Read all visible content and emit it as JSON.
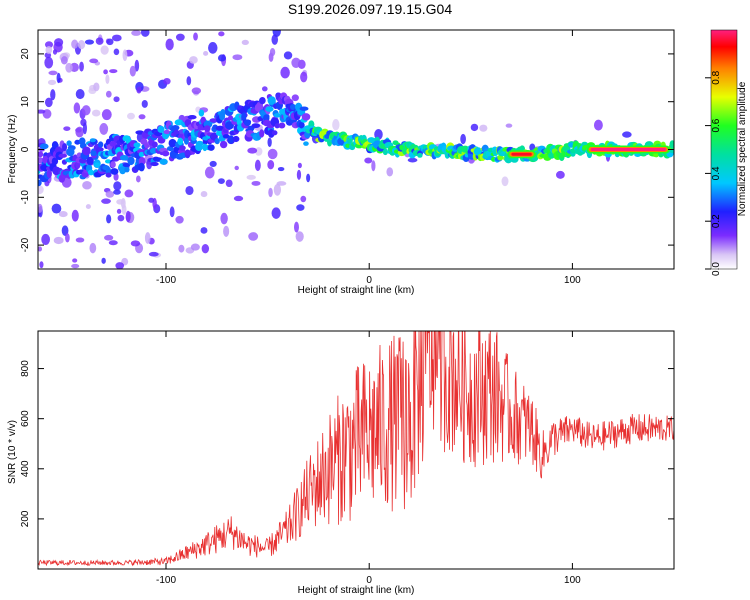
{
  "title": "S199.2026.097.19.15.G04",
  "colors": {
    "snr_line": "#e83030",
    "speckle": "#a070e0",
    "frame": "#000000"
  },
  "chart_data": [
    {
      "type": "heatmap",
      "xlabel": "Height of straight line (km)",
      "ylabel": "Frequency (Hz)",
      "xlim": [
        -163,
        150
      ],
      "ylim": [
        -25,
        25
      ],
      "xticks": [
        -100,
        0,
        100
      ],
      "xtick_labels": [
        "-100",
        "0",
        "100"
      ],
      "yticks": [
        -20,
        -10,
        0,
        10,
        20
      ],
      "ytick_labels": [
        "-20",
        "-10",
        "0",
        "10",
        "20"
      ],
      "colorbar": {
        "label": "Normalized spectral amplitude",
        "range": [
          0,
          1
        ],
        "ticks": [
          0.0,
          0.2,
          0.4,
          0.6,
          0.8
        ],
        "tick_labels": [
          "0.0",
          "0.2",
          "0.4",
          "0.6",
          "0.8"
        ]
      },
      "ridge": {
        "description_points_x": [
          -163,
          -120,
          -80,
          -50,
          -38,
          -25,
          0,
          20,
          40,
          60,
          70,
          80,
          95,
          104,
          108,
          150
        ],
        "description_points_freq": [
          -3,
          -1,
          4,
          7,
          8,
          3,
          1,
          0,
          -0.5,
          -1,
          -1,
          -1,
          -0.5,
          0.5,
          0,
          0
        ],
        "peak_amplitude_segments": [
          {
            "x_start": 68,
            "x_end": 82,
            "freq": -1,
            "amp": 0.95
          },
          {
            "x_start": 107,
            "x_end": 148,
            "freq": 0,
            "amp": 1.0
          }
        ]
      }
    },
    {
      "type": "line",
      "xlabel": "Height of straight line (km)",
      "ylabel": "SNR (10 * v/v)",
      "xlim": [
        -163,
        150
      ],
      "ylim": [
        0,
        950
      ],
      "xticks": [
        -100,
        0,
        100
      ],
      "xtick_labels": [
        "-100",
        "0",
        "100"
      ],
      "yticks": [
        200,
        400,
        600,
        800
      ],
      "ytick_labels": [
        "200",
        "400",
        "600",
        "800"
      ],
      "envelope_x": [
        -163,
        -140,
        -120,
        -100,
        -85,
        -75,
        -68,
        -60,
        -50,
        -40,
        -30,
        -20,
        -10,
        0,
        10,
        20,
        30,
        40,
        50,
        60,
        70,
        80,
        85,
        90,
        100,
        110,
        120,
        130,
        140,
        150
      ],
      "envelope_y": [
        25,
        25,
        25,
        30,
        80,
        120,
        150,
        100,
        80,
        160,
        300,
        400,
        480,
        540,
        580,
        600,
        850,
        800,
        700,
        720,
        620,
        560,
        450,
        520,
        560,
        520,
        540,
        560,
        560,
        560
      ],
      "noise_amplitude": [
        10,
        10,
        10,
        15,
        40,
        60,
        70,
        50,
        40,
        80,
        150,
        230,
        300,
        330,
        350,
        380,
        350,
        350,
        300,
        300,
        200,
        150,
        100,
        80,
        60,
        60,
        60,
        60,
        60,
        50
      ]
    }
  ]
}
